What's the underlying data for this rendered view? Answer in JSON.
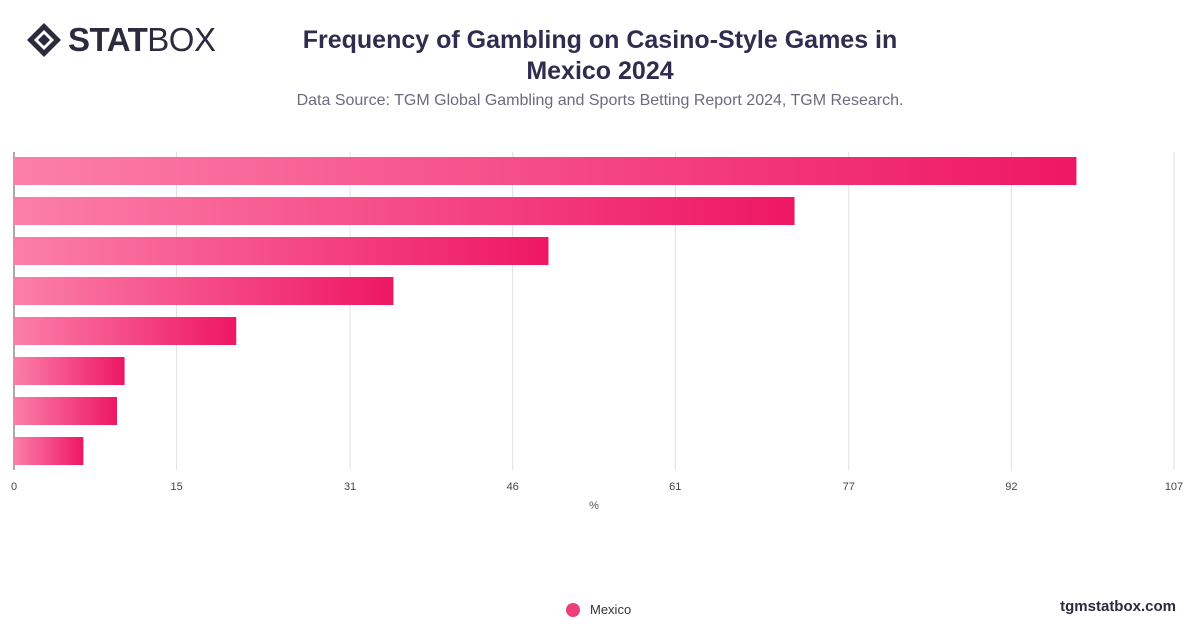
{
  "header": {
    "logo_bold": "STAT",
    "logo_light": "BOX",
    "title": "Frequency of Gambling on Casino-Style Games in Mexico 2024",
    "subtitle": "Data Source: TGM Global Gambling and Sports Betting Report 2024, TGM Research."
  },
  "chart_data": {
    "type": "bar",
    "orientation": "horizontal",
    "categories": [
      "",
      "",
      "",
      "",
      "",
      "",
      "",
      ""
    ],
    "series": [
      {
        "name": "Mexico",
        "values": [
          98.0,
          72.0,
          49.3,
          35.0,
          20.5,
          10.2,
          9.5,
          6.4
        ]
      }
    ],
    "xlabel": "%",
    "ylabel": "",
    "xlim": [
      0,
      107
    ],
    "xticks": [
      0,
      15,
      31,
      46,
      61,
      77,
      92,
      107
    ],
    "grid": true,
    "legend": "bottom-center",
    "colors": {
      "bar_start": "#fb7fa9",
      "bar_end": "#ee1763",
      "legend": "#ee3d7b",
      "grid": "#e0e0e0"
    }
  },
  "legend": {
    "label": "Mexico"
  },
  "footer": {
    "site": "tgmstatbox.com"
  }
}
